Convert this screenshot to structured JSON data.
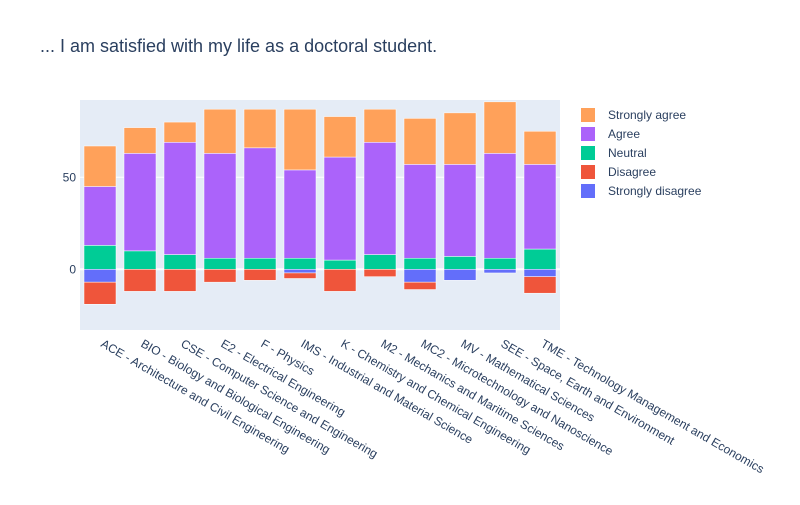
{
  "chart_data": {
    "type": "bar",
    "barmode": "relative",
    "title": "... I am satisfied with my life as a doctoral student.",
    "xlabel": "",
    "ylabel": "",
    "ylim": [
      -33,
      92
    ],
    "yticks": [
      0,
      50
    ],
    "grid": true,
    "legend_position": "right",
    "plot_background": "#e5ecf6",
    "categories": [
      "ACE - Architecture and Civil Engineering",
      "BIO - Biology and Biological Engineering",
      "CSE - Computer Science and Engineering",
      "E2 - Electrical Engineering",
      "F - Physics",
      "IMS - Industrial and Material Science",
      "K - Chemistry and Chemical Engineering",
      "M2 - Mechanics and Maritime Sciences",
      "MC2 - Microtechnology and Nanoscience",
      "MV - Mathematical Sciences",
      "SEE - Space, Earth and Environment",
      "TME - Technology Management and Economics"
    ],
    "series": [
      {
        "name": "Strongly disagree",
        "color": "#636efa",
        "values": [
          -7,
          0,
          0,
          0,
          0,
          -2,
          0,
          0,
          -7,
          -6,
          -2,
          -4
        ]
      },
      {
        "name": "Disagree",
        "color": "#ef553b",
        "values": [
          -12,
          -12,
          -12,
          -7,
          -6,
          -3,
          -12,
          -4,
          -4,
          0,
          0,
          -9
        ]
      },
      {
        "name": "Neutral",
        "color": "#00cc96",
        "values": [
          13,
          10,
          8,
          6,
          6,
          6,
          5,
          8,
          6,
          7,
          6,
          11
        ]
      },
      {
        "name": "Agree",
        "color": "#ab63fa",
        "values": [
          32,
          53,
          61,
          57,
          60,
          48,
          56,
          61,
          51,
          50,
          57,
          46
        ]
      },
      {
        "name": "Strongly agree",
        "color": "#ffa15a",
        "values": [
          22,
          14,
          11,
          24,
          21,
          33,
          22,
          18,
          25,
          28,
          28,
          18
        ]
      }
    ]
  }
}
